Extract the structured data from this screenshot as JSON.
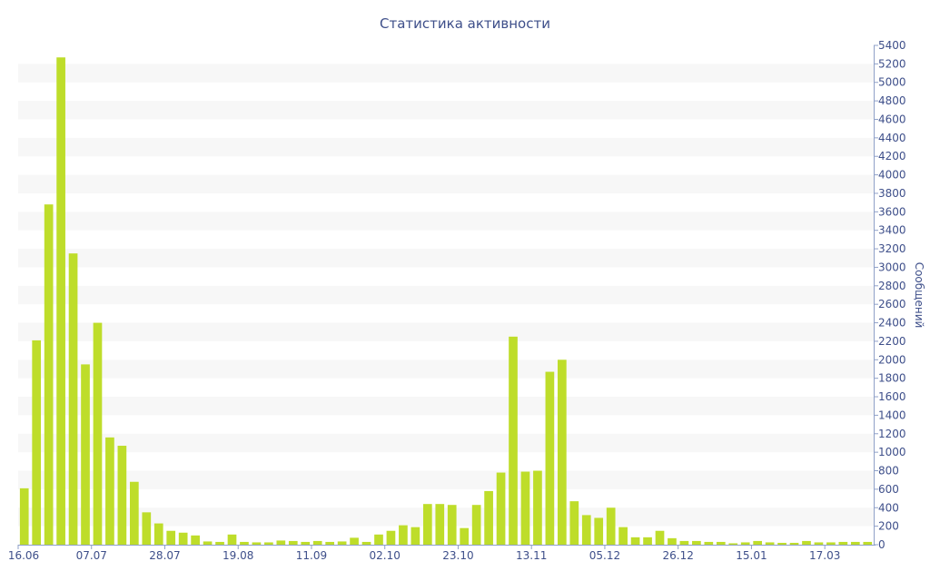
{
  "chart_data": {
    "type": "bar",
    "title": "Статистика активности",
    "xlabel": "",
    "ylabel": "Сообщений",
    "ylim": [
      0,
      5400
    ],
    "y_ticks": [
      0,
      200,
      400,
      600,
      800,
      1000,
      1200,
      1400,
      1600,
      1800,
      2000,
      2200,
      2400,
      2600,
      2800,
      3000,
      3200,
      3400,
      3600,
      3800,
      4000,
      4200,
      4400,
      4600,
      4800,
      5000,
      5200,
      5400
    ],
    "y_axis_side": "right",
    "x_tick_labels": [
      "16.06",
      "07.07",
      "28.07",
      "19.08",
      "11.09",
      "02.10",
      "23.10",
      "13.11",
      "05.12",
      "26.12",
      "15.01",
      "17.03"
    ],
    "x_tick_positions": [
      0,
      6,
      12,
      18,
      24,
      30,
      36,
      42,
      48,
      54,
      60,
      66
    ],
    "values": [
      610,
      2210,
      3680,
      5270,
      3150,
      1950,
      2400,
      1160,
      1070,
      680,
      350,
      230,
      150,
      130,
      100,
      35,
      30,
      110,
      30,
      25,
      25,
      45,
      40,
      30,
      40,
      30,
      35,
      75,
      30,
      110,
      150,
      210,
      190,
      440,
      440,
      430,
      180,
      430,
      580,
      780,
      2250,
      790,
      800,
      1870,
      2000,
      470,
      320,
      290,
      400,
      190,
      80,
      80,
      150,
      70,
      40,
      40,
      30,
      30,
      15,
      25,
      40,
      25,
      20,
      20,
      40,
      25,
      25,
      30,
      30,
      30
    ],
    "bar_color": "#bedd2a",
    "band_color": "#f7f7f7",
    "text_color": "#3e4f8a",
    "grid": "alternating-bands",
    "legend": "none"
  }
}
